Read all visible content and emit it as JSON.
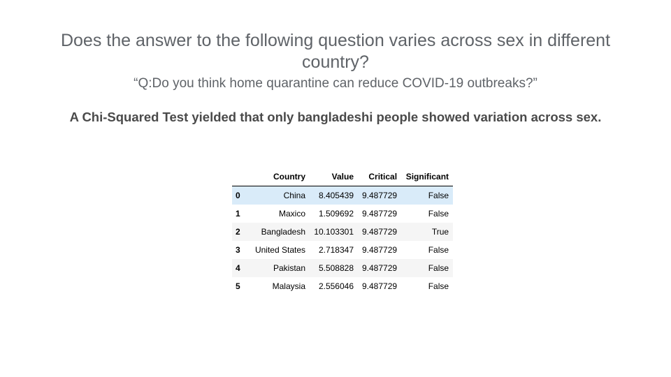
{
  "slide": {
    "title": "Does the answer to the following question varies across sex in different country?",
    "question": "“Q:Do you think home quarantine can reduce COVID-19 outbreaks?”",
    "finding": "A Chi-Squared Test yielded that only bangladeshi people showed variation across sex."
  },
  "table": {
    "columns": [
      "",
      "Country",
      "Value",
      "Critical",
      "Significant"
    ],
    "rows": [
      {
        "index": "0",
        "country": "China",
        "value": "8.405439",
        "critical": "9.487729",
        "significant": "False"
      },
      {
        "index": "1",
        "country": "Maxico",
        "value": "1.509692",
        "critical": "9.487729",
        "significant": "False"
      },
      {
        "index": "2",
        "country": "Bangladesh",
        "value": "10.103301",
        "critical": "9.487729",
        "significant": "True"
      },
      {
        "index": "3",
        "country": "United States",
        "value": "2.718347",
        "critical": "9.487729",
        "significant": "False"
      },
      {
        "index": "4",
        "country": "Pakistan",
        "value": "5.508828",
        "critical": "9.487729",
        "significant": "False"
      },
      {
        "index": "5",
        "country": "Malaysia",
        "value": "2.556046",
        "critical": "9.487729",
        "significant": "False"
      }
    ],
    "highlighted_row": 0,
    "colors": {
      "highlight": "#d9ebf9",
      "stripe": "#f5f5f5",
      "title_text": "#5f6368"
    }
  }
}
